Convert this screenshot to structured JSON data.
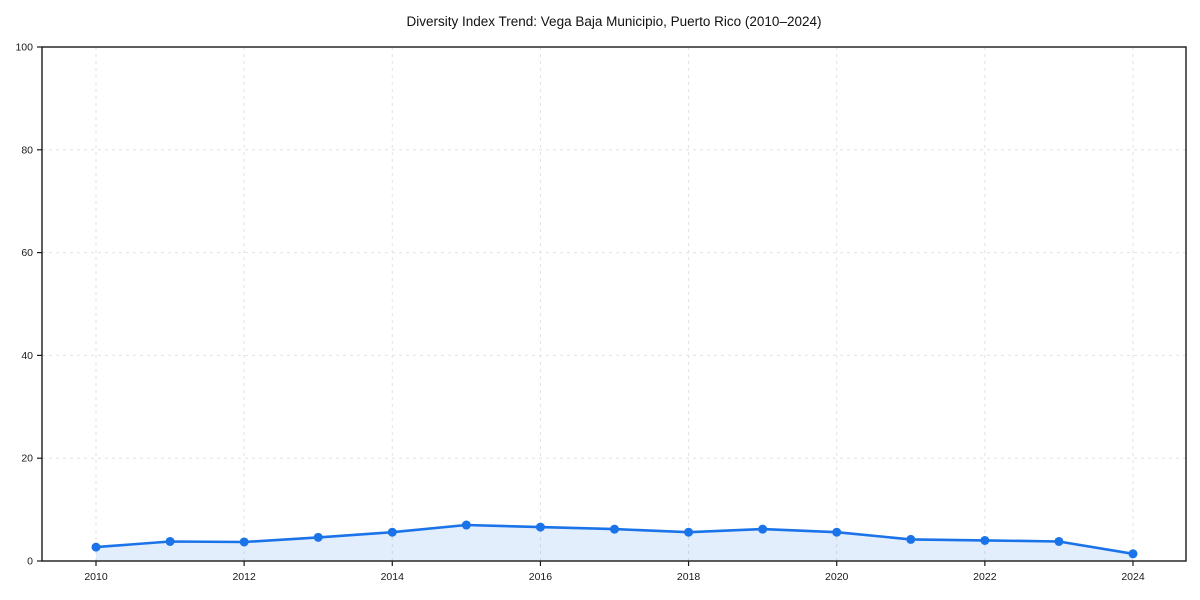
{
  "chart_data": {
    "type": "line",
    "title": "Diversity Index Trend: Vega Baja Municipio, Puerto Rico (2010–2024)",
    "xlabel": "",
    "ylabel": "",
    "x": [
      2010,
      2011,
      2012,
      2013,
      2014,
      2015,
      2016,
      2017,
      2018,
      2019,
      2020,
      2021,
      2022,
      2023,
      2024
    ],
    "series": [
      {
        "name": "Diversity Index",
        "values": [
          2.7,
          3.8,
          3.7,
          4.6,
          5.6,
          7.0,
          6.6,
          6.2,
          5.6,
          6.2,
          5.6,
          4.2,
          4.0,
          3.8,
          1.4
        ]
      }
    ],
    "ylim": [
      0,
      100
    ],
    "yticks": [
      0,
      20,
      40,
      60,
      80,
      100
    ],
    "xticks": [
      2010,
      2012,
      2014,
      2016,
      2018,
      2020,
      2022,
      2024
    ],
    "grid": true,
    "grid_style": "dashed",
    "legend": false,
    "area_fill": true,
    "colors": {
      "line": "#1a73e8",
      "marker": "#1a73e8",
      "fill": "rgba(26,115,232,0.12)",
      "grid": "#e2e2e2",
      "spine": "#1a1a1a",
      "text": "#1a1a1a",
      "background": "#ffffff"
    }
  }
}
